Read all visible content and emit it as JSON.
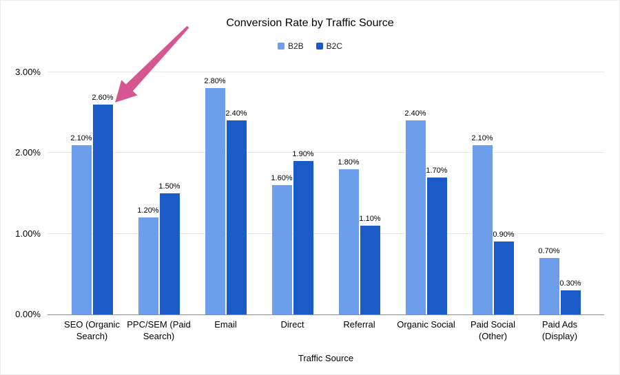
{
  "chart_data": {
    "type": "bar",
    "title": "Conversion Rate by Traffic Source",
    "xlabel": "Traffic Source",
    "ylabel": "",
    "categories": [
      "SEO (Organic Search)",
      "PPC/SEM (Paid Search)",
      "Email",
      "Direct",
      "Referral",
      "Organic Social",
      "Paid Social (Other)",
      "Paid Ads (Display)"
    ],
    "series": [
      {
        "name": "B2B",
        "color": "#6d9eeb",
        "values": [
          2.1,
          1.2,
          2.8,
          1.6,
          1.8,
          2.4,
          2.1,
          0.7
        ]
      },
      {
        "name": "B2C",
        "color": "#1b5bc8",
        "values": [
          2.6,
          1.5,
          2.4,
          1.9,
          1.1,
          1.7,
          0.9,
          0.3
        ]
      }
    ],
    "value_labels": [
      "2.10%",
      "2.60%",
      "1.20%",
      "1.50%",
      "2.80%",
      "2.40%",
      "1.60%",
      "1.90%",
      "1.80%",
      "1.10%",
      "2.40%",
      "1.70%",
      "2.10%",
      "0.90%",
      "0.70%",
      "0.30%"
    ],
    "ylim": [
      0,
      3
    ],
    "yticks": [
      {
        "value": 0,
        "label": "0.00%"
      },
      {
        "value": 1,
        "label": "1.00%"
      },
      {
        "value": 2,
        "label": "2.00%"
      },
      {
        "value": 3,
        "label": "3.00%"
      }
    ],
    "grid": true,
    "legend_position": "top"
  },
  "annotation": {
    "type": "arrow",
    "color": "#d6578f",
    "points_to": "B2C bar of SEO (Organic Search), 2.60%"
  },
  "colors": {
    "background": "#ffffff",
    "gridline": "#e8e8e8",
    "axis_line": "#8f8f8f",
    "text": "#000000"
  }
}
